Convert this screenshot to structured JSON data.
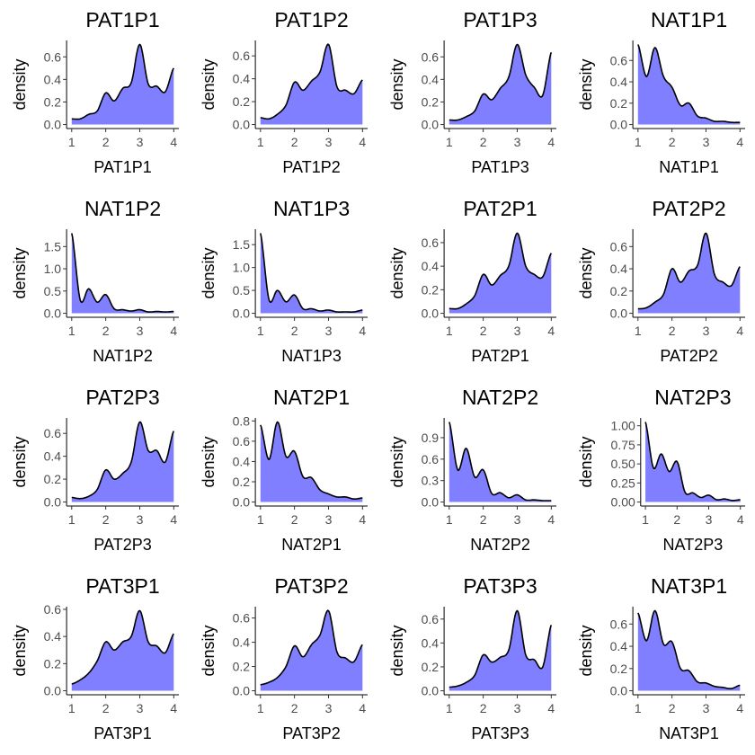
{
  "chart_data": {
    "type": "area",
    "layout": "4x4 facet grid",
    "ylabel": "density",
    "x": [
      1,
      1.25,
      1.5,
      1.75,
      2,
      2.25,
      2.5,
      2.75,
      3,
      3.25,
      3.5,
      3.75,
      4
    ],
    "x_ticks": [
      "1",
      "2",
      "3",
      "4"
    ],
    "xlim": [
      1,
      4
    ],
    "fill_color": "#7f7fff",
    "line_color": "#000000",
    "panels": [
      {
        "title": "PAT1P1",
        "xlabel": "PAT1P1",
        "y_ticks": [
          0,
          0.2,
          0.4,
          0.6
        ],
        "y_tick_labels": [
          "0.0",
          "0.2",
          "0.4",
          "0.6"
        ],
        "values": [
          0.05,
          0.05,
          0.09,
          0.12,
          0.28,
          0.21,
          0.32,
          0.37,
          0.71,
          0.36,
          0.34,
          0.29,
          0.5
        ]
      },
      {
        "title": "PAT1P2",
        "xlabel": "PAT1P2",
        "y_ticks": [
          0,
          0.2,
          0.4,
          0.6
        ],
        "y_tick_labels": [
          "0.0",
          "0.2",
          "0.4",
          "0.6"
        ],
        "values": [
          0.06,
          0.05,
          0.09,
          0.17,
          0.37,
          0.3,
          0.38,
          0.46,
          0.7,
          0.33,
          0.3,
          0.27,
          0.39
        ]
      },
      {
        "title": "PAT1P3",
        "xlabel": "PAT1P3",
        "y_ticks": [
          0,
          0.2,
          0.4,
          0.6
        ],
        "y_tick_labels": [
          "0.0",
          "0.2",
          "0.4",
          "0.6"
        ],
        "values": [
          0.04,
          0.04,
          0.07,
          0.12,
          0.27,
          0.22,
          0.32,
          0.42,
          0.71,
          0.44,
          0.33,
          0.26,
          0.64
        ]
      },
      {
        "title": "NAT1P1",
        "xlabel": "NAT1P1",
        "y_ticks": [
          0,
          0.2,
          0.4,
          0.6
        ],
        "y_tick_labels": [
          "0.0",
          "0.2",
          "0.4",
          "0.6"
        ],
        "values": [
          0.75,
          0.45,
          0.72,
          0.45,
          0.35,
          0.18,
          0.2,
          0.08,
          0.06,
          0.03,
          0.03,
          0.02,
          0.02
        ]
      },
      {
        "title": "NAT1P2",
        "xlabel": "NAT1P2",
        "y_ticks": [
          0,
          0.5,
          1.0,
          1.5
        ],
        "y_tick_labels": [
          "0.0",
          "0.5",
          "1.0",
          "1.5"
        ],
        "values": [
          1.8,
          0.3,
          0.55,
          0.25,
          0.42,
          0.1,
          0.08,
          0.05,
          0.08,
          0.03,
          0.04,
          0.03,
          0.04
        ]
      },
      {
        "title": "NAT1P3",
        "xlabel": "NAT1P3",
        "y_ticks": [
          0,
          0.5,
          1.0,
          1.5
        ],
        "y_tick_labels": [
          "0.0",
          "0.5",
          "1.0",
          "1.5"
        ],
        "values": [
          1.75,
          0.3,
          0.5,
          0.25,
          0.4,
          0.1,
          0.1,
          0.05,
          0.07,
          0.03,
          0.03,
          0.03,
          0.07
        ]
      },
      {
        "title": "PAT2P1",
        "xlabel": "PAT2P1",
        "y_ticks": [
          0,
          0.2,
          0.4,
          0.6
        ],
        "y_tick_labels": [
          "0.0",
          "0.2",
          "0.4",
          "0.6"
        ],
        "values": [
          0.04,
          0.04,
          0.08,
          0.15,
          0.33,
          0.24,
          0.32,
          0.4,
          0.68,
          0.4,
          0.33,
          0.31,
          0.51
        ]
      },
      {
        "title": "PAT2P2",
        "xlabel": "PAT2P2",
        "y_ticks": [
          0,
          0.2,
          0.4,
          0.6
        ],
        "y_tick_labels": [
          "0.0",
          "0.2",
          "0.4",
          "0.6"
        ],
        "values": [
          0.04,
          0.05,
          0.1,
          0.17,
          0.4,
          0.28,
          0.38,
          0.43,
          0.72,
          0.35,
          0.28,
          0.25,
          0.42
        ]
      },
      {
        "title": "PAT2P3",
        "xlabel": "PAT2P3",
        "y_ticks": [
          0,
          0.2,
          0.4,
          0.6
        ],
        "y_tick_labels": [
          "0.0",
          "0.2",
          "0.4",
          "0.6"
        ],
        "values": [
          0.04,
          0.03,
          0.05,
          0.11,
          0.28,
          0.2,
          0.25,
          0.35,
          0.7,
          0.45,
          0.45,
          0.35,
          0.62
        ]
      },
      {
        "title": "NAT2P1",
        "xlabel": "NAT2P1",
        "y_ticks": [
          0,
          0.2,
          0.4,
          0.6,
          0.8
        ],
        "y_tick_labels": [
          "0.0",
          "0.2",
          "0.4",
          "0.6",
          "0.8"
        ],
        "values": [
          0.76,
          0.42,
          0.79,
          0.45,
          0.5,
          0.25,
          0.24,
          0.12,
          0.08,
          0.05,
          0.05,
          0.03,
          0.04
        ]
      },
      {
        "title": "NAT2P2",
        "xlabel": "NAT2P2",
        "y_ticks": [
          0,
          0.3,
          0.6,
          0.9
        ],
        "y_tick_labels": [
          "0.0",
          "0.3",
          "0.6",
          "0.9"
        ],
        "values": [
          1.12,
          0.45,
          0.75,
          0.35,
          0.45,
          0.12,
          0.13,
          0.06,
          0.1,
          0.03,
          0.03,
          0.02,
          0.02
        ]
      },
      {
        "title": "NAT2P3",
        "xlabel": "NAT2P3",
        "y_ticks": [
          0,
          0.25,
          0.5,
          0.75,
          1.0
        ],
        "y_tick_labels": [
          "0.00",
          "0.25",
          "0.50",
          "0.75",
          "1.00"
        ],
        "values": [
          1.05,
          0.45,
          0.63,
          0.4,
          0.53,
          0.13,
          0.12,
          0.06,
          0.09,
          0.03,
          0.04,
          0.02,
          0.03
        ]
      },
      {
        "title": "PAT3P1",
        "xlabel": "PAT3P1",
        "y_ticks": [
          0,
          0.2,
          0.4,
          0.6
        ],
        "y_tick_labels": [
          "0.0",
          "0.2",
          "0.4",
          "0.6"
        ],
        "values": [
          0.05,
          0.08,
          0.13,
          0.22,
          0.36,
          0.3,
          0.36,
          0.4,
          0.59,
          0.36,
          0.33,
          0.28,
          0.42
        ]
      },
      {
        "title": "PAT3P2",
        "xlabel": "PAT3P2",
        "y_ticks": [
          0,
          0.2,
          0.4,
          0.6
        ],
        "y_tick_labels": [
          "0.0",
          "0.2",
          "0.4",
          "0.6"
        ],
        "values": [
          0.05,
          0.07,
          0.11,
          0.2,
          0.37,
          0.28,
          0.38,
          0.46,
          0.66,
          0.32,
          0.27,
          0.24,
          0.38
        ]
      },
      {
        "title": "PAT3P3",
        "xlabel": "PAT3P3",
        "y_ticks": [
          0,
          0.2,
          0.4,
          0.6
        ],
        "y_tick_labels": [
          "0.0",
          "0.2",
          "0.4",
          "0.6"
        ],
        "values": [
          0.03,
          0.04,
          0.07,
          0.13,
          0.3,
          0.24,
          0.28,
          0.34,
          0.67,
          0.3,
          0.26,
          0.2,
          0.55
        ]
      },
      {
        "title": "NAT3P1",
        "xlabel": "NAT3P1",
        "y_ticks": [
          0,
          0.2,
          0.4,
          0.6
        ],
        "y_tick_labels": [
          "0.0",
          "0.2",
          "0.4",
          "0.6"
        ],
        "values": [
          0.7,
          0.45,
          0.72,
          0.42,
          0.44,
          0.2,
          0.18,
          0.08,
          0.07,
          0.04,
          0.03,
          0.02,
          0.05
        ]
      }
    ]
  }
}
